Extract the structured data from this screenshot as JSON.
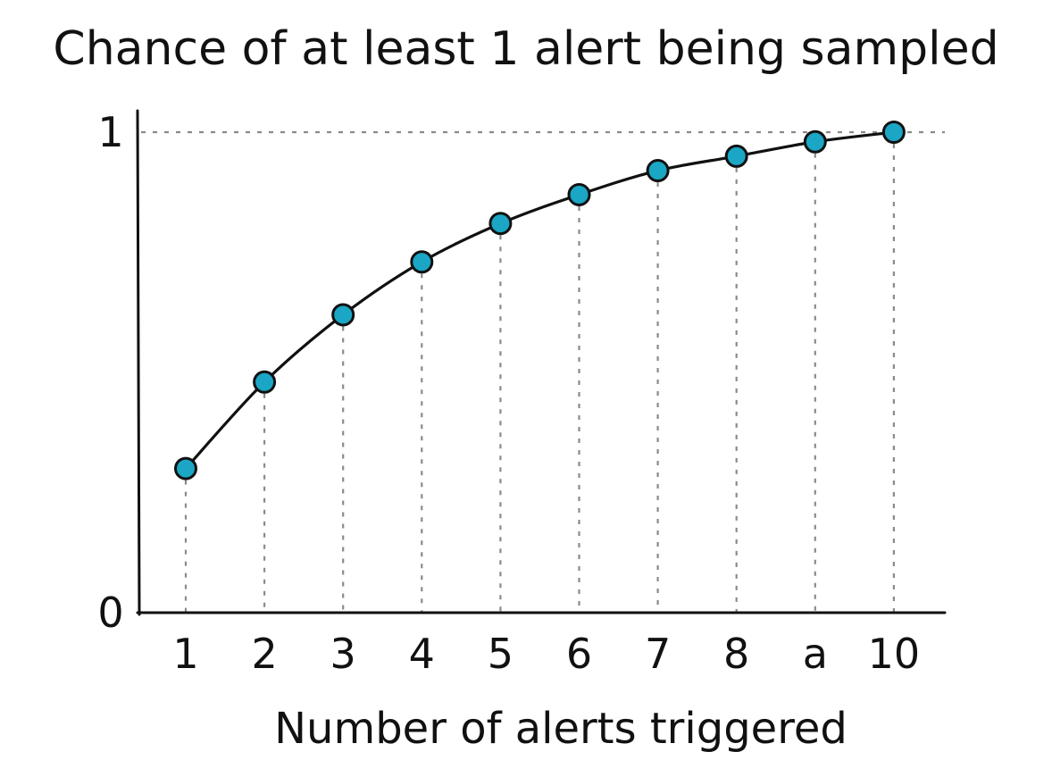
{
  "chart_data": {
    "type": "line",
    "title": "Chance of at least 1 alert being sampled",
    "xlabel": "Number of alerts triggered",
    "ylabel": "",
    "x": [
      1,
      2,
      3,
      4,
      5,
      6,
      7,
      8,
      9,
      10
    ],
    "x_tick_labels": [
      "1",
      "2",
      "3",
      "4",
      "5",
      "6",
      "7",
      "8",
      "a",
      "10"
    ],
    "y_tick_labels": [
      {
        "value": 0,
        "label": "0"
      },
      {
        "value": 1,
        "label": "1"
      }
    ],
    "series": [
      {
        "values": [
          0.3,
          0.48,
          0.62,
          0.73,
          0.81,
          0.87,
          0.92,
          0.95,
          0.98,
          1.0
        ],
        "color": "#1aa6c4"
      }
    ],
    "ylim": [
      0,
      1
    ],
    "grid": "dotted drop lines from points and at y=1",
    "legend": "none"
  }
}
